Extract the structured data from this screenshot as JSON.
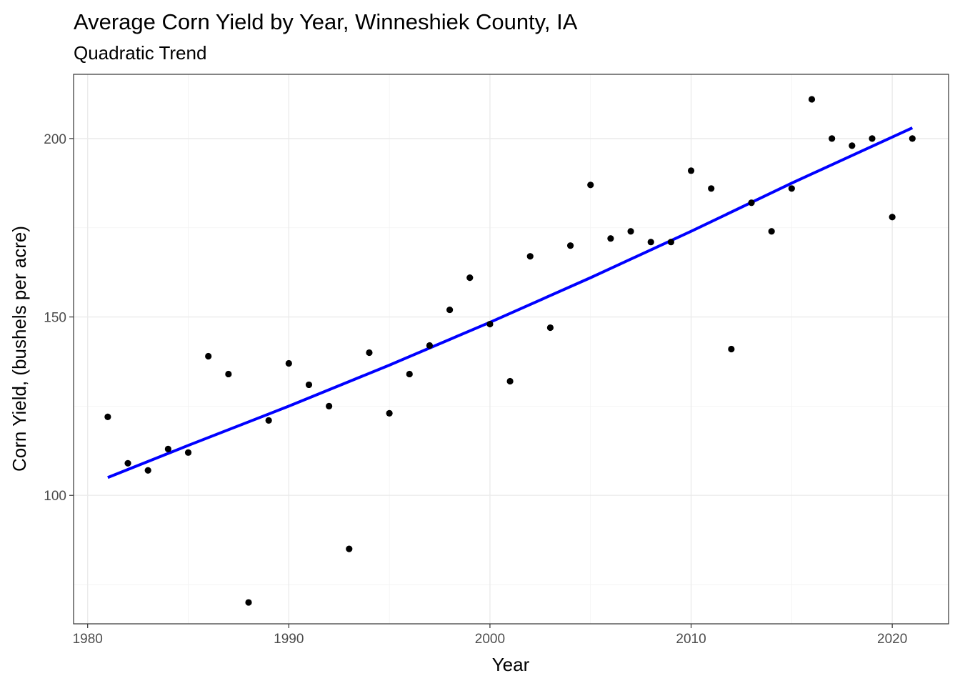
{
  "chart_data": {
    "type": "scatter",
    "title": "Average Corn Yield by Year, Winneshiek County, IA",
    "subtitle": "Quadratic Trend",
    "xlabel": "Year",
    "ylabel": "Corn Yield, (bushels per acre)",
    "xlim": [
      1979.3,
      2022.8
    ],
    "ylim": [
      64,
      218
    ],
    "x_ticks": [
      1980,
      1990,
      2000,
      2010,
      2020
    ],
    "y_ticks": [
      100,
      150,
      200
    ],
    "x_tick_labels": [
      "1980",
      "1990",
      "2000",
      "2010",
      "2020"
    ],
    "y_tick_labels": [
      "100",
      "150",
      "200"
    ],
    "grid": true,
    "legend": "none",
    "point_color": "#000000",
    "trend_color": "#0000ff",
    "points": {
      "x": [
        1981,
        1982,
        1983,
        1984,
        1985,
        1986,
        1987,
        1988,
        1989,
        1990,
        1991,
        1992,
        1993,
        1994,
        1995,
        1996,
        1997,
        1998,
        1999,
        2000,
        2001,
        2002,
        2003,
        2004,
        2005,
        2006,
        2007,
        2008,
        2009,
        2010,
        2011,
        2012,
        2013,
        2014,
        2015,
        2016,
        2017,
        2018,
        2019,
        2020,
        2021
      ],
      "y": [
        122,
        109,
        107,
        113,
        112,
        139,
        134,
        70,
        121,
        137,
        131,
        125,
        85,
        140,
        123,
        134,
        142,
        152,
        161,
        148,
        132,
        167,
        147,
        170,
        187,
        172,
        174,
        171,
        171,
        191,
        186,
        141,
        182,
        174,
        186,
        211,
        200,
        198,
        200,
        178,
        200
      ]
    },
    "trend": {
      "x": [
        1981,
        1985,
        1990,
        1995,
        2000,
        2005,
        2010,
        2015,
        2021
      ],
      "y": [
        105,
        114,
        125,
        136.5,
        148.5,
        161,
        174,
        187.5,
        203
      ]
    }
  }
}
